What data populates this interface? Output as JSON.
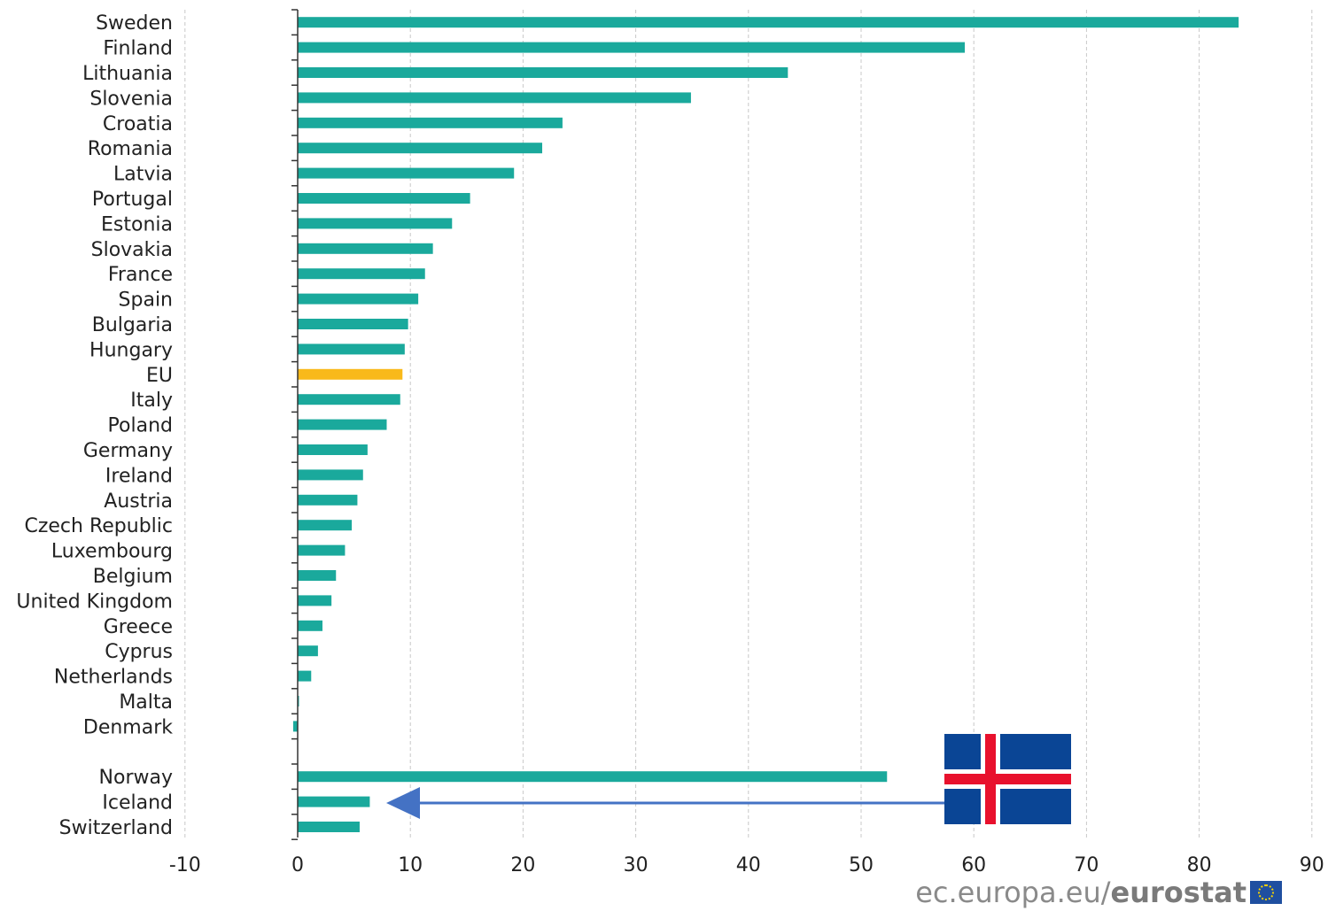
{
  "chart_data": {
    "type": "bar",
    "orientation": "horizontal",
    "title": "",
    "xlabel": "",
    "ylabel": "",
    "xlim": [
      -10,
      90
    ],
    "x_ticks": [
      -10,
      0,
      10,
      20,
      30,
      40,
      50,
      60,
      70,
      80,
      90
    ],
    "grid": "vertical dashed",
    "categories": [
      "Sweden",
      "Finland",
      "Lithuania",
      "Slovenia",
      "Croatia",
      "Romania",
      "Latvia",
      "Portugal",
      "Estonia",
      "Slovakia",
      "France",
      "Spain",
      "Bulgaria",
      "Hungary",
      "EU",
      "Italy",
      "Poland",
      "Germany",
      "Ireland",
      "Austria",
      "Czech Republic",
      "Luxembourg",
      "Belgium",
      "United Kingdom",
      "Greece",
      "Cyprus",
      "Netherlands",
      "Malta",
      "Denmark",
      "",
      "Norway",
      "Iceland",
      "Switzerland"
    ],
    "values": [
      83.5,
      59.2,
      43.5,
      34.9,
      23.5,
      21.7,
      19.2,
      15.3,
      13.7,
      12.0,
      11.3,
      10.7,
      9.8,
      9.5,
      9.3,
      9.1,
      7.9,
      6.2,
      5.8,
      5.3,
      4.8,
      4.2,
      3.4,
      3.0,
      2.2,
      1.8,
      1.2,
      0.1,
      -0.4,
      null,
      52.3,
      6.4,
      5.5
    ],
    "highlight": "EU",
    "colors": {
      "bar": "#1aa99c",
      "highlight": "#f9b91a",
      "axis": "#333333",
      "grid": "#c8c8c8",
      "arrow": "#4472c4"
    },
    "annotation": {
      "type": "arrow-with-flag",
      "target": "Iceland",
      "flag": "iceland-flag"
    }
  },
  "source": {
    "prefix": "ec.europa.eu/",
    "bold": "eurostat"
  }
}
